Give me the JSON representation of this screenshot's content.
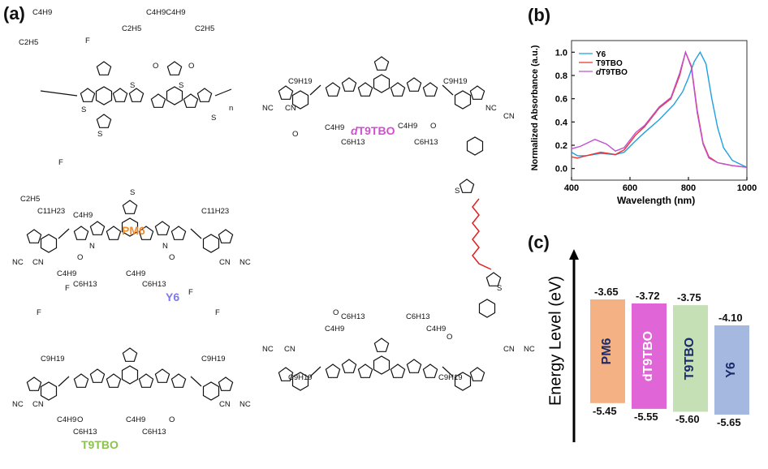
{
  "panels": {
    "a": "(a)",
    "b": "(b)",
    "c": "(c)"
  },
  "molecules": {
    "pm6": {
      "name": "PM6",
      "color": "#f08a2a",
      "labels": [
        "C4H9",
        "C2H5",
        "C2H5",
        "C4H9C4H9",
        "C2H5",
        "F",
        "F",
        "O",
        "O",
        "S",
        "S",
        "S",
        "S",
        "S",
        "n",
        "C2H5",
        "C4H9"
      ]
    },
    "y6": {
      "name": "Y6",
      "color": "#7b78f0",
      "labels": [
        "C11H23",
        "C11H23",
        "NC",
        "CN",
        "CN",
        "NC",
        "C4H9",
        "C6H13",
        "C4H9",
        "C6H13",
        "N",
        "N",
        "S",
        "F",
        "F",
        "F",
        "F",
        "O",
        "O"
      ]
    },
    "t9tbo": {
      "name": "T9TBO",
      "color": "#8cc152",
      "labels": [
        "C9H19",
        "C9H19",
        "NC",
        "CN",
        "CN",
        "NC",
        "C4H9",
        "C6H13",
        "C4H9",
        "C6H13",
        "O",
        "O"
      ]
    },
    "dt9tbo": {
      "name": "dT9TBO",
      "name_prefix": "d",
      "name_rest": "T9TBO",
      "color": "#d24fd2",
      "labels": [
        "C9H19",
        "C9H19",
        "NC",
        "CN",
        "CN",
        "NC",
        "C4H9",
        "C6H13",
        "C4H9",
        "C6H13",
        "C4H9",
        "C6H13",
        "C6H13",
        "C4H9",
        "C9H19",
        "C9H19",
        "NC",
        "CN",
        "NC",
        "CN",
        "S",
        "S",
        "O",
        "O",
        "O",
        "O"
      ]
    },
    "linker_color": "#e02020"
  },
  "chart_data": [
    {
      "type": "line",
      "title": "",
      "xlabel": "Wavelength (nm)",
      "ylabel": "Normalized Absorbance (a.u.)",
      "xlim": [
        400,
        1000
      ],
      "ylim": [
        -0.1,
        1.1
      ],
      "xticks": [
        "400",
        "600",
        "800",
        "1000"
      ],
      "yticks": [
        "0.0",
        "0.2",
        "0.4",
        "0.6",
        "0.8",
        "1.0"
      ],
      "legend": "top-left",
      "series": [
        {
          "name": "Y6",
          "color": "#1fa0e0",
          "x": [
            400,
            420,
            450,
            500,
            550,
            580,
            620,
            650,
            700,
            750,
            780,
            800,
            820,
            840,
            860,
            880,
            900,
            920,
            950,
            1000
          ],
          "y": [
            0.14,
            0.11,
            0.11,
            0.13,
            0.12,
            0.14,
            0.24,
            0.31,
            0.42,
            0.55,
            0.66,
            0.78,
            0.92,
            1.0,
            0.9,
            0.6,
            0.35,
            0.18,
            0.07,
            0.01
          ]
        },
        {
          "name": "T9TBO",
          "color": "#f03030",
          "x": [
            400,
            420,
            450,
            500,
            550,
            580,
            620,
            650,
            700,
            740,
            770,
            790,
            810,
            830,
            850,
            870,
            900,
            950,
            1000
          ],
          "y": [
            0.1,
            0.09,
            0.11,
            0.14,
            0.12,
            0.16,
            0.29,
            0.36,
            0.52,
            0.6,
            0.8,
            1.0,
            0.88,
            0.5,
            0.22,
            0.1,
            0.05,
            0.025,
            0.01
          ]
        },
        {
          "name": "dT9TBO",
          "name_prefix": "d",
          "name_rest": "T9TBO",
          "color": "#c050d0",
          "x": [
            400,
            430,
            480,
            520,
            550,
            580,
            620,
            650,
            700,
            740,
            770,
            790,
            810,
            830,
            850,
            870,
            900,
            950,
            1000
          ],
          "y": [
            0.17,
            0.19,
            0.25,
            0.21,
            0.15,
            0.18,
            0.31,
            0.37,
            0.53,
            0.61,
            0.82,
            1.0,
            0.87,
            0.48,
            0.21,
            0.09,
            0.05,
            0.025,
            0.01
          ]
        }
      ]
    },
    {
      "type": "bar",
      "title": "",
      "ylabel": "Energy Level (eV)",
      "categories": [
        "PM6",
        "dT9TBO",
        "T9TBO",
        "Y6"
      ],
      "lumo": [
        -3.65,
        -3.72,
        -3.75,
        -4.1
      ],
      "homo": [
        -5.45,
        -5.55,
        -5.6,
        -5.65
      ],
      "lumo_labels": [
        "-3.65",
        "-3.72",
        "-3.75",
        "-4.10"
      ],
      "homo_labels": [
        "-5.45",
        "-5.55",
        "-5.60",
        "-5.65"
      ],
      "colors": [
        "#f4b183",
        "#e066d8",
        "#c5e0b4",
        "#a4b8e0"
      ],
      "label_colors": [
        "#1c2b6b",
        "#ffffff",
        "#1c2b6b",
        "#1c2b6b"
      ]
    }
  ]
}
